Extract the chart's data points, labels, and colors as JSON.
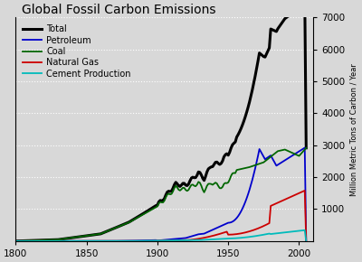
{
  "title": "Global Fossil Carbon Emissions",
  "ylabel": "Million Metric Tons of Carbon / Year",
  "xlim": [
    1800,
    2010
  ],
  "ylim": [
    0,
    7000
  ],
  "yticks": [
    1000,
    2000,
    3000,
    4000,
    5000,
    6000,
    7000
  ],
  "xticks": [
    1800,
    1850,
    1900,
    1950,
    2000
  ],
  "background_color": "#d8d8d8",
  "grid_color": "#ffffff",
  "legend_entries": [
    "Total",
    "Petroleum",
    "Coal",
    "Natural Gas",
    "Cement Production"
  ],
  "line_colors": [
    "#000000",
    "#0000cc",
    "#006600",
    "#cc0000",
    "#00bbbb"
  ],
  "line_widths": [
    2.2,
    1.3,
    1.3,
    1.3,
    1.3
  ]
}
